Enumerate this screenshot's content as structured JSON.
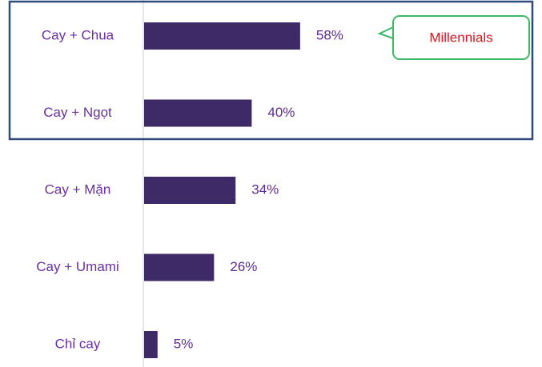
{
  "chart_data": {
    "type": "bar",
    "orientation": "horizontal",
    "categories": [
      "Cay + Chua",
      "Cay + Ngọt",
      "Cay + Mặn",
      "Cay + Umami",
      "Chỉ cay"
    ],
    "values": [
      58,
      40,
      34,
      26,
      5
    ],
    "value_labels": [
      "58%",
      "40%",
      "34%",
      "26%",
      "5%"
    ],
    "color": "#3d2a66",
    "xlim": [
      0,
      100
    ],
    "annotation": "Millennials"
  }
}
